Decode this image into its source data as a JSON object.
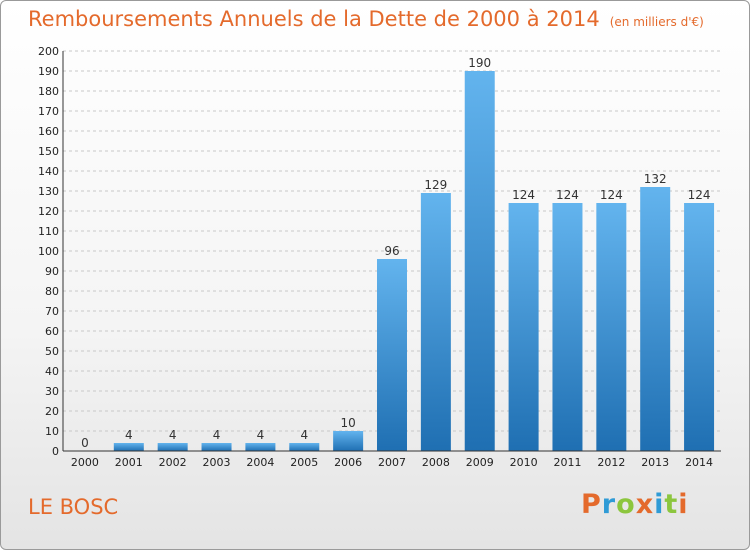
{
  "header": {
    "title": "Remboursements Annuels de la Dette de 2000 à 2014",
    "subtitle": "(en milliers d'€)"
  },
  "footer": {
    "city": "LE BOSC",
    "logo": "Proxiti",
    "logo_colors": [
      "#e46a2c",
      "#2f9bd6",
      "#8cc63e",
      "#e46a2c",
      "#2f9bd6",
      "#8cc63e",
      "#e46a2c"
    ]
  },
  "colors": {
    "bar_light": "#63b4ee",
    "bar_dark": "#1f6fb2",
    "title": "#e46a2c"
  },
  "chart_data": {
    "type": "bar",
    "title": "Remboursements Annuels de la Dette de 2000 à 2014",
    "categories": [
      "2000",
      "2001",
      "2002",
      "2003",
      "2004",
      "2005",
      "2006",
      "2007",
      "2008",
      "2009",
      "2010",
      "2011",
      "2012",
      "2013",
      "2014"
    ],
    "values": [
      0,
      4,
      4,
      4,
      4,
      4,
      10,
      96,
      129,
      190,
      124,
      124,
      124,
      132,
      124
    ],
    "ylim": [
      0,
      200
    ],
    "ytick_step": 10,
    "grid": true
  }
}
